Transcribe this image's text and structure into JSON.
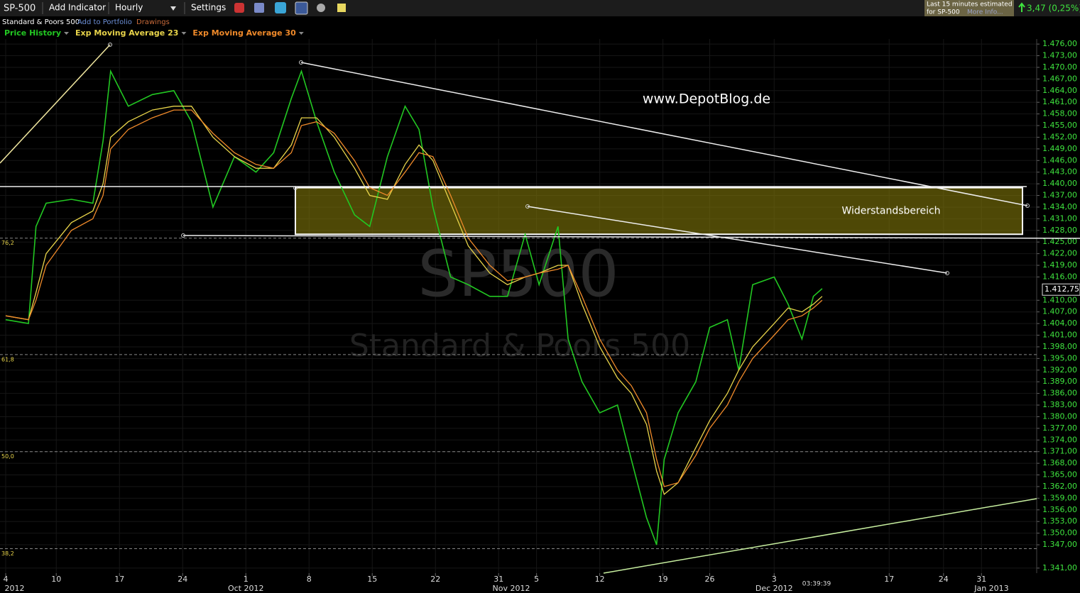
{
  "ui": {
    "symbol": "SP-500",
    "add_indicator": "Add Indicator",
    "interval": "Hourly",
    "settings": "Settings",
    "instrument_name": "Standard & Poors 500",
    "add_to_portfolio": "Add to Portfolio",
    "drawings": "Drawings",
    "delay_note_1": "Last 15 minutes estimated",
    "delay_note_2": "for SP-500",
    "more_info": "More Info...",
    "change": "3,47 (0,25%)",
    "clock": "03:39:39"
  },
  "chart_data": {
    "type": "line",
    "watermark_symbol": "SP500",
    "watermark_name": "Standard & Poors 500",
    "annotations": [
      "www.DepotBlog.de"
    ],
    "x": [
      0,
      1.8,
      2.4,
      3.2,
      5.2,
      6.9,
      7.7,
      8.3,
      9.7,
      11.6,
      13.3,
      14.7,
      16.4,
      18.1,
      19.8,
      21.2,
      22.6,
      23.4,
      24.6,
      26,
      27.6,
      28.8,
      30.2,
      31.6,
      32.7,
      33.8,
      35.2,
      36.6,
      38.3,
      39.7,
      41.1,
      42.2,
      43.7,
      44.5,
      45.6,
      47,
      48.4,
      49.5,
      50.7,
      51.5,
      52.1,
      53.2,
      54.6,
      55.7,
      57.1,
      58,
      59.1,
      60.8,
      61.9,
      63,
      63.9,
      64.6
    ],
    "series": [
      {
        "name": "Price History",
        "color": "#22c722",
        "values": [
          1405,
          1404,
          1429,
          1435,
          1436,
          1435,
          1451,
          1469,
          1460,
          1463,
          1464,
          1456,
          1434,
          1447,
          1443,
          1448,
          1462,
          1469,
          1456,
          1443,
          1432,
          1429,
          1447,
          1460,
          1454,
          1434,
          1416,
          1414,
          1411,
          1411,
          1427,
          1414,
          1429,
          1400,
          1389,
          1381,
          1383,
          1369,
          1354,
          1347,
          1369,
          1381,
          1389,
          1403,
          1405,
          1392,
          1414,
          1416,
          1409,
          1400,
          1411,
          1413
        ]
      },
      {
        "name": "Exp Moving Average 23",
        "color": "#e8d44a",
        "values": [
          1406,
          1405,
          1412,
          1422,
          1430,
          1433,
          1440,
          1452,
          1456,
          1459,
          1460,
          1460,
          1452,
          1447,
          1444,
          1444,
          1450,
          1457,
          1457,
          1452,
          1444,
          1437,
          1436,
          1445,
          1450,
          1446,
          1435,
          1424,
          1417,
          1414,
          1416,
          1417,
          1419,
          1419,
          1409,
          1398,
          1390,
          1386,
          1378,
          1366,
          1360,
          1363,
          1372,
          1379,
          1386,
          1392,
          1398,
          1404,
          1408,
          1407,
          1409,
          1411
        ]
      },
      {
        "name": "Exp Moving Average 30",
        "color": "#f08a2a",
        "values": [
          1406,
          1405,
          1410,
          1419,
          1428,
          1431,
          1437,
          1449,
          1454,
          1457,
          1459,
          1459,
          1453,
          1448,
          1445,
          1444,
          1448,
          1455,
          1456,
          1453,
          1446,
          1439,
          1437,
          1443,
          1448,
          1447,
          1437,
          1426,
          1419,
          1415,
          1416,
          1417,
          1418,
          1419,
          1411,
          1400,
          1392,
          1388,
          1381,
          1369,
          1362,
          1363,
          1370,
          1377,
          1383,
          1389,
          1395,
          1401,
          1405,
          1406,
          1408,
          1410
        ]
      }
    ],
    "xlim": [
      -0.45,
      81.57
    ],
    "xticks": [
      {
        "value": 0,
        "label": "4"
      },
      {
        "value": 4,
        "label": "10"
      },
      {
        "value": 9,
        "label": "17"
      },
      {
        "value": 14,
        "label": "24"
      },
      {
        "value": 19,
        "label": "1"
      },
      {
        "value": 24,
        "label": "8"
      },
      {
        "value": 29,
        "label": "15"
      },
      {
        "value": 34,
        "label": "22"
      },
      {
        "value": 39,
        "label": "31"
      },
      {
        "value": 42,
        "label": "5"
      },
      {
        "value": 47,
        "label": "12"
      },
      {
        "value": 52,
        "label": "19"
      },
      {
        "value": 55.7,
        "label": "26"
      },
      {
        "value": 60.8,
        "label": "3"
      },
      {
        "value": 69.9,
        "label": "17"
      },
      {
        "value": 74.2,
        "label": "24"
      },
      {
        "value": 77.2,
        "label": "31"
      }
    ],
    "month_ticks": [
      {
        "value": 0.7,
        "label": "2012"
      },
      {
        "value": 19,
        "label": "Oct 2012"
      },
      {
        "value": 40,
        "label": "Nov 2012"
      },
      {
        "value": 60.8,
        "label": "Dec 2012"
      },
      {
        "value": 78,
        "label": "Jan 2013"
      }
    ],
    "ylim": [
      1339.7,
      1477.3
    ],
    "yticks": [
      {
        "value": 1476,
        "label": "1.476,00"
      },
      {
        "value": 1473,
        "label": "1.473,00"
      },
      {
        "value": 1470,
        "label": "1.470,00"
      },
      {
        "value": 1467,
        "label": "1.467,00"
      },
      {
        "value": 1464,
        "label": "1.464,00"
      },
      {
        "value": 1461,
        "label": "1.461,00"
      },
      {
        "value": 1458,
        "label": "1.458,00"
      },
      {
        "value": 1455,
        "label": "1.455,00"
      },
      {
        "value": 1452,
        "label": "1.452,00"
      },
      {
        "value": 1449,
        "label": "1.449,00"
      },
      {
        "value": 1446,
        "label": "1.446,00"
      },
      {
        "value": 1443,
        "label": "1.443,00"
      },
      {
        "value": 1440,
        "label": "1.440,00"
      },
      {
        "value": 1437,
        "label": "1.437,00"
      },
      {
        "value": 1434,
        "label": "1.434,00"
      },
      {
        "value": 1431,
        "label": "1.431,00"
      },
      {
        "value": 1428,
        "label": "1.428,00"
      },
      {
        "value": 1425,
        "label": "1.425,00"
      },
      {
        "value": 1422,
        "label": "1.422,00"
      },
      {
        "value": 1419,
        "label": "1.419,00"
      },
      {
        "value": 1416,
        "label": "1.416,00"
      },
      {
        "value": 1410,
        "label": "1.410,00"
      },
      {
        "value": 1407,
        "label": "1.407,00"
      },
      {
        "value": 1404,
        "label": "1.404,00"
      },
      {
        "value": 1401,
        "label": "1.401,00"
      },
      {
        "value": 1398,
        "label": "1.398,00"
      },
      {
        "value": 1395,
        "label": "1.395,00"
      },
      {
        "value": 1392,
        "label": "1.392,00"
      },
      {
        "value": 1389,
        "label": "1.389,00"
      },
      {
        "value": 1386,
        "label": "1.386,00"
      },
      {
        "value": 1383,
        "label": "1.383,00"
      },
      {
        "value": 1380,
        "label": "1.380,00"
      },
      {
        "value": 1377,
        "label": "1.377,00"
      },
      {
        "value": 1374,
        "label": "1.374,00"
      },
      {
        "value": 1371,
        "label": "1.371,00"
      },
      {
        "value": 1368,
        "label": "1.368,00"
      },
      {
        "value": 1365,
        "label": "1.365,00"
      },
      {
        "value": 1362,
        "label": "1.362,00"
      },
      {
        "value": 1359,
        "label": "1.359,00"
      },
      {
        "value": 1356,
        "label": "1.356,00"
      },
      {
        "value": 1353,
        "label": "1.353,00"
      },
      {
        "value": 1350,
        "label": "1.350,00"
      },
      {
        "value": 1347,
        "label": "1.347,00"
      },
      {
        "value": 1341,
        "label": "1.341,00"
      }
    ],
    "grid": true,
    "last_price": {
      "value": 1412.75,
      "label": "1.412,75"
    },
    "resistance_zone": {
      "label": "Widerstandsbereich",
      "low": 1427,
      "high": 1439
    },
    "fib_levels": [
      {
        "price": 1426,
        "label": "76,2"
      },
      {
        "price": 1396,
        "label": "61,8"
      },
      {
        "price": 1371,
        "label": "50,0"
      },
      {
        "price": 1346,
        "label": "38,2"
      }
    ]
  }
}
